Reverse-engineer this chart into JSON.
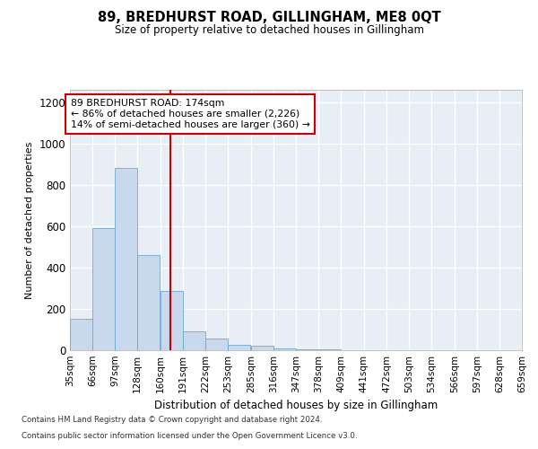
{
  "title": "89, BREDHURST ROAD, GILLINGHAM, ME8 0QT",
  "subtitle": "Size of property relative to detached houses in Gillingham",
  "xlabel": "Distribution of detached houses by size in Gillingham",
  "ylabel": "Number of detached properties",
  "bar_color": "#c9d9ed",
  "bar_edge_color": "#6fa8d0",
  "background_color": "#e8eef5",
  "grid_color": "#ffffff",
  "vline_x": 174,
  "vline_color": "#cc0000",
  "annotation_line1": "89 BREDHURST ROAD: 174sqm",
  "annotation_line2": "← 86% of detached houses are smaller (2,226)",
  "annotation_line3": "14% of semi-detached houses are larger (360) →",
  "annotation_box_color": "#ffffff",
  "annotation_box_edge_color": "#cc0000",
  "bins": [
    35,
    66,
    97,
    128,
    160,
    191,
    222,
    253,
    285,
    316,
    347,
    378,
    409,
    441,
    472,
    503,
    534,
    566,
    597,
    628,
    659
  ],
  "values": [
    150,
    590,
    880,
    460,
    285,
    90,
    55,
    25,
    20,
    10,
    5,
    3,
    2,
    1,
    1,
    0,
    0,
    0,
    0,
    0
  ],
  "ylim": [
    0,
    1260
  ],
  "yticks": [
    0,
    200,
    400,
    600,
    800,
    1000,
    1200
  ],
  "footnote1": "Contains HM Land Registry data © Crown copyright and database right 2024.",
  "footnote2": "Contains public sector information licensed under the Open Government Licence v3.0."
}
